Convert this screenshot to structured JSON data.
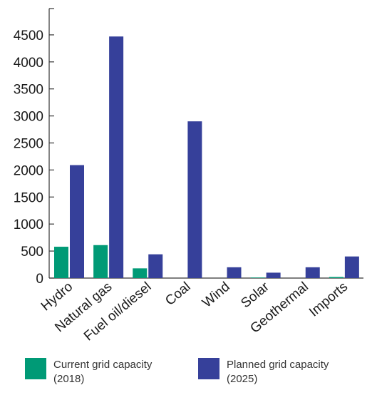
{
  "chart_data": {
    "type": "bar",
    "title": "",
    "xlabel": "",
    "ylabel": "",
    "categories": [
      "Hydro",
      "Natural gas",
      "Fuel oil/diesel",
      "Coal",
      "Wind",
      "Solar",
      "Geothermal",
      "Imports"
    ],
    "series": [
      {
        "name": "Current grid capacity (2018)",
        "color": "#009a76",
        "values": [
          580,
          610,
          180,
          0,
          0,
          10,
          0,
          20
        ]
      },
      {
        "name": "Planned grid capacity (2025)",
        "color": "#36409a",
        "values": [
          2090,
          4470,
          440,
          2900,
          200,
          100,
          200,
          400
        ]
      }
    ],
    "ylim": [
      0,
      5000
    ],
    "yticks": [
      0,
      500,
      1000,
      1500,
      2000,
      2500,
      3000,
      3500,
      4000,
      4500
    ],
    "grid": false,
    "legend_position": "bottom"
  },
  "legend": {
    "current": {
      "line1": "Current grid capacity",
      "line2": "(2018)"
    },
    "planned": {
      "line1": "Planned grid capacity",
      "line2": "(2025)"
    }
  }
}
